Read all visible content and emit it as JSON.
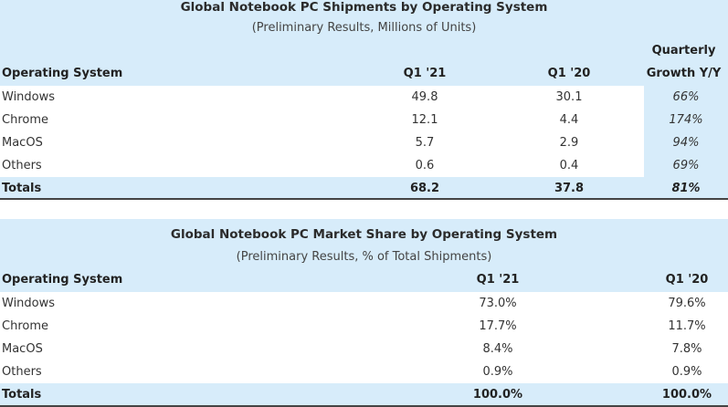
{
  "table1": {
    "title": "Global Notebook PC Shipments by Operating System",
    "subtitle": "(Preliminary Results, Millions of Units)",
    "headers": {
      "os": "Operating System",
      "q1_21": "Q1 '21",
      "q1_20": "Q1 '20",
      "growth_line1": "Quarterly",
      "growth_line2": "Growth Y/Y"
    },
    "rows": [
      {
        "os": "Windows",
        "q1_21": "49.8",
        "q1_20": "30.1",
        "growth": "66%"
      },
      {
        "os": "Chrome",
        "q1_21": "12.1",
        "q1_20": "4.4",
        "growth": "174%"
      },
      {
        "os": "MacOS",
        "q1_21": "5.7",
        "q1_20": "2.9",
        "growth": "94%"
      },
      {
        "os": "Others",
        "q1_21": "0.6",
        "q1_20": "0.4",
        "growth": "69%"
      }
    ],
    "totals": {
      "os": "Totals",
      "q1_21": "68.2",
      "q1_20": "37.8",
      "growth": "81%"
    }
  },
  "table2": {
    "title": "Global Notebook PC Market Share by Operating System",
    "subtitle": "(Preliminary Results, % of Total Shipments)",
    "headers": {
      "os": "Operating System",
      "q1_21": "Q1 '21",
      "q1_20": "Q1 '20"
    },
    "rows": [
      {
        "os": "Windows",
        "q1_21": "73.0%",
        "q1_20": "79.6%"
      },
      {
        "os": "Chrome",
        "q1_21": "17.7%",
        "q1_20": "11.7%"
      },
      {
        "os": "MacOS",
        "q1_21": "8.4%",
        "q1_20": "7.8%"
      },
      {
        "os": "Others",
        "q1_21": "0.9%",
        "q1_20": "0.9%"
      }
    ],
    "totals": {
      "os": "Totals",
      "q1_21": "100.0%",
      "q1_20": "100.0%"
    }
  },
  "colors": {
    "header_bg": "#d7ecfa",
    "row_bg": "#ffffff",
    "rule": "#444444"
  }
}
